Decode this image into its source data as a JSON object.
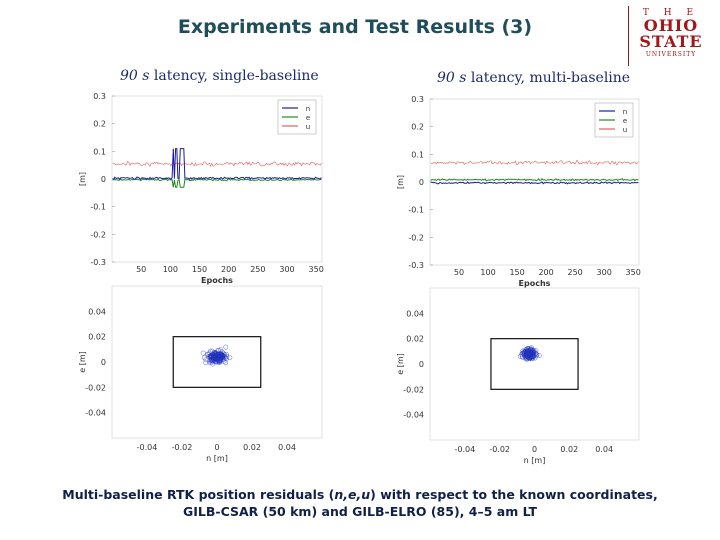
{
  "slide": {
    "title": "Experiments and Test Results (3)",
    "logo": {
      "the": "T H E",
      "line1": "OHIO",
      "line2": "STATE",
      "line3": "UNIVERSITY"
    },
    "panel_left_title": {
      "value": "90 s",
      "rest": " latency, single-baseline"
    },
    "panel_right_title": {
      "value": "90 s",
      "rest": " latency, multi-baseline"
    },
    "caption_line1_a": "Multi-baseline RTK position residuals (",
    "caption_line1_vars": "n,e,u",
    "caption_line1_b": ") with respect to the known coordinates,",
    "caption_line2": "GILB-CSAR (50 km) and GILB-ELRO (85), 4–5 am LT"
  },
  "chart_data": [
    {
      "type": "line",
      "panel": "single-baseline",
      "xlabel": "Epochs",
      "ylabel": "[m]",
      "xlim": [
        0,
        360
      ],
      "ylim": [
        -0.3,
        0.3
      ],
      "xticks": [
        50,
        100,
        150,
        200,
        250,
        300,
        350
      ],
      "yticks": [
        0.3,
        0.2,
        0.1,
        0,
        -0.1,
        -0.2,
        -0.3
      ],
      "legend": [
        "n",
        "e",
        "u"
      ],
      "colors": {
        "n": "#1a1aa6",
        "e": "#1f8a1f",
        "u": "#e06060"
      },
      "series": [
        {
          "name": "n",
          "level": 0.003,
          "noise": 0.006
        },
        {
          "name": "e",
          "level": -0.003,
          "noise": 0.005
        },
        {
          "name": "u",
          "level": 0.055,
          "noise": 0.012
        }
      ],
      "spikes": {
        "epochs": [
          105,
          110,
          118,
          122
        ],
        "peak": 0.11,
        "trough": -0.03
      }
    },
    {
      "type": "line",
      "panel": "multi-baseline",
      "xlabel": "Epochs",
      "ylabel": "[m]",
      "xlim": [
        0,
        360
      ],
      "ylim": [
        -0.3,
        0.3
      ],
      "xticks": [
        50,
        100,
        150,
        200,
        250,
        300,
        350
      ],
      "yticks": [
        0.3,
        0.2,
        0.1,
        0,
        -0.1,
        -0.2,
        -0.3
      ],
      "legend": [
        "n",
        "e",
        "u"
      ],
      "colors": {
        "n": "#1a1aa6",
        "e": "#1f8a1f",
        "u": "#e06060"
      },
      "series": [
        {
          "name": "n",
          "level": -0.003,
          "noise": 0.005
        },
        {
          "name": "e",
          "level": 0.008,
          "noise": 0.005
        },
        {
          "name": "u",
          "level": 0.07,
          "noise": 0.012
        }
      ]
    },
    {
      "type": "scatter",
      "panel": "single-baseline",
      "xlabel": "n [m]",
      "ylabel": "e [m]",
      "xlim": [
        -0.06,
        0.06
      ],
      "ylim": [
        -0.06,
        0.06
      ],
      "xticks": [
        -0.04,
        -0.02,
        0,
        0.02,
        0.04
      ],
      "yticks": [
        0.04,
        0.02,
        0,
        -0.02,
        -0.04
      ],
      "color": "#2233bb",
      "box": {
        "n": [
          -0.025,
          0.025
        ],
        "e": [
          -0.02,
          0.02
        ]
      },
      "cloud": {
        "center": [
          0.0,
          0.004
        ],
        "spread": [
          0.004,
          0.004
        ],
        "count": 170
      }
    },
    {
      "type": "scatter",
      "panel": "multi-baseline",
      "xlabel": "n [m]",
      "ylabel": "e [m]",
      "xlim": [
        -0.06,
        0.06
      ],
      "ylim": [
        -0.06,
        0.06
      ],
      "xticks": [
        -0.04,
        -0.02,
        0,
        0.02,
        0.04
      ],
      "yticks": [
        0.04,
        0.02,
        0,
        -0.02,
        -0.04
      ],
      "color": "#2233bb",
      "box": {
        "n": [
          -0.025,
          0.025
        ],
        "e": [
          -0.02,
          0.02
        ]
      },
      "cloud": {
        "center": [
          -0.003,
          0.008
        ],
        "spread": [
          0.003,
          0.003
        ],
        "count": 170
      }
    }
  ]
}
